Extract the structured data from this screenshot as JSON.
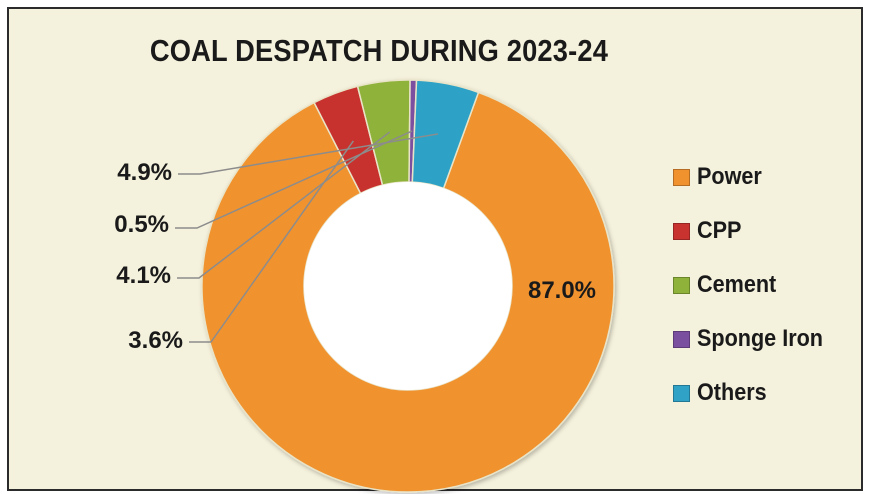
{
  "chart_data": {
    "type": "pie",
    "title": "COAL DESPATCH DURING 2023-24",
    "donut": true,
    "legend_position": "right",
    "categories": [
      "Power",
      "CPP",
      "Cement",
      "Sponge Iron",
      "Others"
    ],
    "values": [
      87.0,
      3.6,
      4.1,
      0.5,
      4.9
    ],
    "data_labels": [
      "87.0%",
      "3.6%",
      "4.1%",
      "0.5%",
      "4.9%"
    ],
    "colors": [
      "#f0922e",
      "#c8332f",
      "#8fb23a",
      "#7b4fa0",
      "#2fa2c6"
    ]
  }
}
